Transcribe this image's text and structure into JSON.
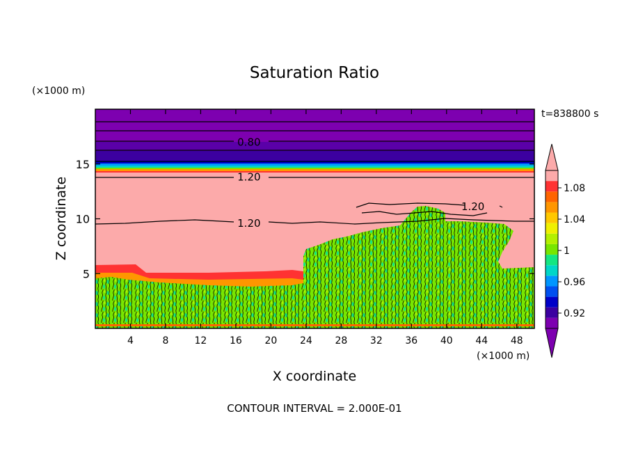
{
  "chart_data": {
    "type": "heatmap",
    "title": "Saturation Ratio",
    "xlabel": "X coordinate",
    "ylabel": "Z coordinate",
    "x_unit": "(×1000 m)",
    "y_unit": "(×1000 m)",
    "time_label": "t=838800 s",
    "footer": "CONTOUR INTERVAL = 2.000E-01",
    "xlim": [
      0,
      50
    ],
    "ylim": [
      0,
      20
    ],
    "x_ticks": [
      4,
      8,
      12,
      16,
      20,
      24,
      28,
      32,
      36,
      40,
      44,
      48
    ],
    "y_ticks": [
      5,
      10,
      15
    ],
    "contour_labels": [
      {
        "text": "0.80",
        "x": 17.5,
        "z": 17.0
      },
      {
        "text": "1.20",
        "x": 17.5,
        "z": 13.8
      },
      {
        "text": "1.20",
        "x": 17.5,
        "z": 9.6
      },
      {
        "text": "1.20",
        "x": 43.0,
        "z": 11.1
      }
    ],
    "colorbar": {
      "ticks": [
        "1.08",
        "1.04",
        "1",
        "0.96",
        "0.92"
      ],
      "colors": [
        "#7d00b0",
        "#3c00a0",
        "#0000c8",
        "#0050f0",
        "#0096ff",
        "#00d7c8",
        "#14e682",
        "#78e600",
        "#b4f000",
        "#f0f000",
        "#ffc800",
        "#ff9600",
        "#ff6400",
        "#ff3232",
        "#fcaaaa"
      ],
      "under_color": "#7d00b0",
      "over_color": "#fcaaaa"
    }
  }
}
